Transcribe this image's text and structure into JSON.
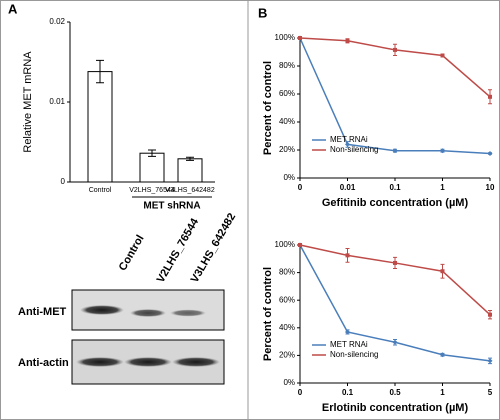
{
  "panels": [
    "A",
    "B"
  ],
  "blot": {
    "lanes": [
      "Control",
      "V2LHS_76544",
      "V3LHS_642482"
    ],
    "rows": [
      "Anti-MET",
      "Anti-actin"
    ]
  },
  "chart_data": [
    {
      "type": "bar",
      "ylabel": "Relative MET mRNA",
      "group_label": "MET shRNA",
      "categories": [
        "Control",
        "V2LHS_76544",
        "V3LHS_642482"
      ],
      "values": [
        0.0138,
        0.0036,
        0.0029
      ],
      "errors": [
        0.0014,
        0.0004,
        0.0002
      ],
      "color": "#ffffff",
      "ylim": [
        0,
        0.02
      ],
      "yticks": [
        0,
        0.01,
        0.02
      ]
    },
    {
      "type": "line",
      "xlabel": "Gefitinib concentration (µM)",
      "ylabel": "Percent of control",
      "categories": [
        "0",
        "0.01",
        "0.1",
        "1",
        "10"
      ],
      "legend": "left",
      "series": [
        {
          "name": "MET RNAi",
          "color": "#4a7ebb",
          "values": [
            100,
            24,
            19.5,
            19.5,
            17.5
          ],
          "errors": [
            0,
            2,
            1,
            1,
            0.5
          ]
        },
        {
          "name": "Non-silencing",
          "color": "#be4b48",
          "values": [
            100,
            98,
            91.5,
            87.5,
            58
          ],
          "errors": [
            0,
            1.5,
            4,
            1,
            5
          ]
        }
      ],
      "ylim": [
        0,
        100
      ],
      "yticks": [
        {
          "value": 0,
          "label": "0%"
        },
        {
          "value": 20,
          "label": "20%"
        },
        {
          "value": 40,
          "label": "40%"
        },
        {
          "value": 60,
          "label": "60%"
        },
        {
          "value": 80,
          "label": "80%"
        },
        {
          "value": 100,
          "label": "100%"
        }
      ]
    },
    {
      "type": "line",
      "xlabel": "Erlotinib concentration (µM)",
      "ylabel": "Percent of control",
      "categories": [
        "0",
        "0.1",
        "0.5",
        "1",
        "5"
      ],
      "legend": "left",
      "series": [
        {
          "name": "MET RNAi",
          "color": "#4a7ebb",
          "values": [
            100,
            37,
            29.5,
            20.5,
            16
          ],
          "errors": [
            0,
            1.5,
            2,
            1,
            2
          ]
        },
        {
          "name": "Non-silencing",
          "color": "#be4b48",
          "values": [
            100,
            92.5,
            87,
            81,
            49.5
          ],
          "errors": [
            0,
            5,
            4,
            5,
            3
          ]
        }
      ],
      "ylim": [
        0,
        100
      ],
      "yticks": [
        {
          "value": 0,
          "label": "0%"
        },
        {
          "value": 20,
          "label": "20%"
        },
        {
          "value": 40,
          "label": "40%"
        },
        {
          "value": 60,
          "label": "60%"
        },
        {
          "value": 80,
          "label": "80%"
        },
        {
          "value": 100,
          "label": "100%"
        }
      ]
    }
  ]
}
